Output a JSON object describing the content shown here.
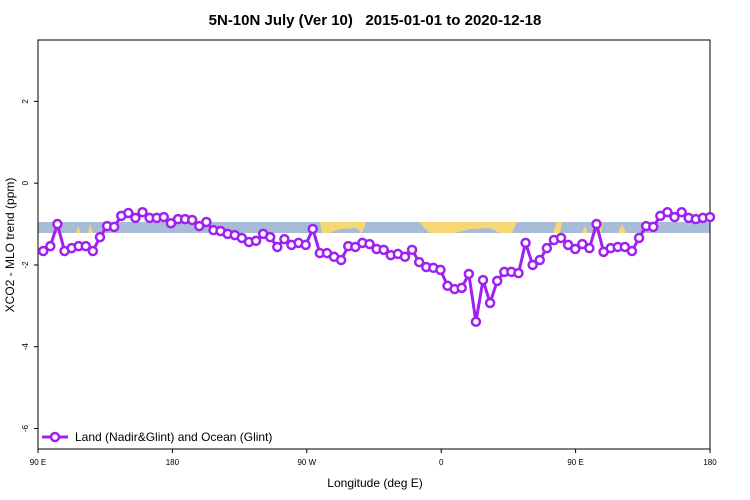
{
  "chart_data": {
    "type": "line",
    "title": "5N-10N July (Ver 10)   2015-01-01 to 2020-12-18",
    "xlabel": "Longitude (deg E)",
    "ylabel": "XCO2 - MLO trend (ppm)",
    "xlim": [
      90,
      540
    ],
    "xticks": [
      {
        "value": 90,
        "label": "90 E"
      },
      {
        "value": 180,
        "label": "180"
      },
      {
        "value": 270,
        "label": "90 W"
      },
      {
        "value": 360,
        "label": "0"
      },
      {
        "value": 450,
        "label": "90 E"
      },
      {
        "value": 540,
        "label": "180"
      }
    ],
    "ylim": [
      -6.5,
      3.5
    ],
    "yticks": [
      2,
      0,
      -2,
      -4,
      -6
    ],
    "legend": "bottom-left",
    "x": [
      93.5,
      98.25,
      103,
      107.75,
      112.5,
      117.25,
      122,
      126.75,
      131.5,
      136.25,
      141,
      145.75,
      150.5,
      155.25,
      160,
      164.75,
      169.5,
      174.25,
      179,
      183.75,
      188.5,
      193.25,
      198,
      202.75,
      207.5,
      212.25,
      217,
      221.75,
      226.5,
      231.25,
      236,
      240.75,
      245.5,
      250.25,
      255,
      259.75,
      264.5,
      269.25,
      274,
      278.75,
      283.5,
      288.25,
      293,
      297.75,
      302.5,
      307.25,
      312,
      316.75,
      321.5,
      326.25,
      331,
      335.75,
      340.5,
      345.25,
      350,
      354.75,
      359.5,
      364.25,
      369,
      373.75,
      378.5,
      383.25,
      388,
      392.75,
      397.5,
      402.25,
      407,
      411.75,
      416.5,
      421.25,
      426,
      430.75,
      435.5,
      440.25,
      445,
      449.75,
      454.5,
      459.25,
      464,
      468.75,
      473.5,
      478.25,
      483,
      487.75,
      492.5,
      497.25,
      502,
      506.75,
      511.5,
      516.25,
      521,
      525.75,
      530.5,
      535.25,
      540
    ],
    "series": [
      {
        "name": "Land (Nadir&Glint) and Ocean (Glint)",
        "color": "#a020f0",
        "values": [
          -1.66,
          -1.54,
          -1.0,
          -1.66,
          -1.59,
          -1.54,
          -1.54,
          -1.66,
          -1.32,
          -1.05,
          -1.07,
          -0.8,
          -0.73,
          -0.85,
          -0.71,
          -0.85,
          -0.85,
          -0.83,
          -0.98,
          -0.88,
          -0.88,
          -0.9,
          -1.05,
          -0.95,
          -1.15,
          -1.17,
          -1.24,
          -1.27,
          -1.34,
          -1.44,
          -1.41,
          -1.24,
          -1.32,
          -1.56,
          -1.37,
          -1.51,
          -1.46,
          -1.51,
          -1.12,
          -1.71,
          -1.71,
          -1.8,
          -1.88,
          -1.54,
          -1.56,
          -1.46,
          -1.49,
          -1.61,
          -1.63,
          -1.76,
          -1.73,
          -1.8,
          -1.63,
          -1.93,
          -2.05,
          -2.07,
          -2.12,
          -2.51,
          -2.59,
          -2.56,
          -2.22,
          -3.39,
          -2.37,
          -2.93,
          -2.39,
          -2.17,
          -2.17,
          -2.2,
          -1.46,
          -2.0,
          -1.88,
          -1.59,
          -1.39,
          -1.34,
          -1.51,
          -1.61,
          -1.49,
          -1.59,
          -1.0,
          -1.68,
          -1.59,
          -1.56,
          -1.56,
          -1.66,
          -1.34,
          -1.05,
          -1.07,
          -0.8,
          -0.71,
          -0.83,
          -0.71,
          -0.85,
          -0.88,
          -0.85,
          -0.83
        ]
      }
    ]
  }
}
